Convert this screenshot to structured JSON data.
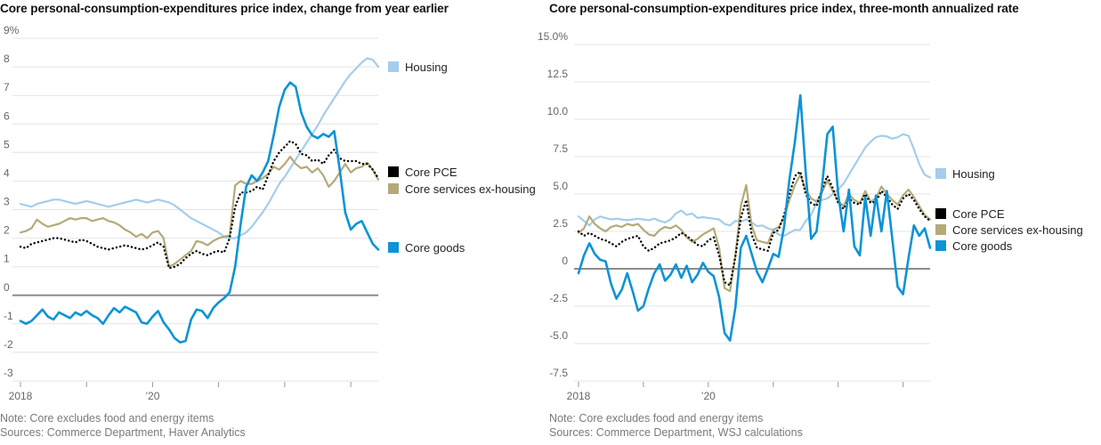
{
  "style": {
    "background": "#ffffff",
    "gridline_color": "#e4e4e4",
    "zero_line_color": "#8c8c8c",
    "tick_color": "#999999",
    "axis_text_color": "#666666",
    "title_color": "#121212",
    "note_color": "#7a7a7a",
    "legend_text_color": "#222222"
  },
  "chart_data": [
    {
      "type": "line",
      "title": "Core personal-consumption-expenditures price index, change from year earlier",
      "note": "Note: Core excludes food and energy items",
      "sources": "Sources: Commerce Department, Haver Analytics",
      "x_unit": "monthly, Jan 2018 through mid-2023",
      "ylim": [
        -3,
        9
      ],
      "yticks": [
        9,
        8,
        7,
        6,
        5,
        4,
        3,
        2,
        1,
        0,
        -1,
        -2,
        -3
      ],
      "ytick_labels": [
        "9%",
        "8",
        "7",
        "6",
        "5",
        "4",
        "3",
        "2",
        "1",
        "0",
        "-1",
        "-2",
        "-3"
      ],
      "xticks": [
        {
          "index": 0,
          "label": "2018"
        },
        {
          "index": 12,
          "label": ""
        },
        {
          "index": 24,
          "label": "’20"
        },
        {
          "index": 36,
          "label": ""
        },
        {
          "index": 48,
          "label": ""
        },
        {
          "index": 60,
          "label": ""
        }
      ],
      "grid": true,
      "legend_position": "right",
      "series": [
        {
          "name": "Housing",
          "color": "#a5cdeb",
          "style": "solid",
          "values": [
            3.2,
            3.15,
            3.1,
            3.2,
            3.25,
            3.3,
            3.35,
            3.35,
            3.3,
            3.25,
            3.2,
            3.25,
            3.3,
            3.25,
            3.2,
            3.15,
            3.1,
            3.15,
            3.2,
            3.25,
            3.3,
            3.35,
            3.3,
            3.25,
            3.3,
            3.35,
            3.3,
            3.25,
            3.15,
            3.0,
            2.85,
            2.7,
            2.6,
            2.5,
            2.4,
            2.3,
            2.2,
            2.05,
            2.0,
            2.0,
            2.1,
            2.2,
            2.4,
            2.65,
            2.9,
            3.2,
            3.55,
            3.9,
            4.15,
            4.45,
            4.75,
            5.05,
            5.35,
            5.65,
            5.95,
            6.3,
            6.6,
            6.9,
            7.2,
            7.5,
            7.75,
            7.95,
            8.15,
            8.3,
            8.25,
            8.0
          ]
        },
        {
          "name": "Core PCE",
          "color": "#000000",
          "style": "dotted",
          "values": [
            1.7,
            1.65,
            1.8,
            1.85,
            1.9,
            1.95,
            2.0,
            2.0,
            1.95,
            1.9,
            1.85,
            1.95,
            1.9,
            1.8,
            1.7,
            1.65,
            1.6,
            1.65,
            1.7,
            1.75,
            1.7,
            1.65,
            1.6,
            1.65,
            1.75,
            1.85,
            1.7,
            0.95,
            1.0,
            1.1,
            1.3,
            1.45,
            1.55,
            1.45,
            1.4,
            1.5,
            1.55,
            1.5,
            2.0,
            3.1,
            3.6,
            3.6,
            3.65,
            3.8,
            3.7,
            4.2,
            4.7,
            5.0,
            5.2,
            5.4,
            5.3,
            4.95,
            4.9,
            4.7,
            4.75,
            4.6,
            4.9,
            5.1,
            4.8,
            4.7,
            4.7,
            4.7,
            4.6,
            4.6,
            4.4,
            4.1
          ]
        },
        {
          "name": "Core services ex-housing",
          "color": "#b4aa79",
          "style": "solid",
          "values": [
            2.2,
            2.25,
            2.35,
            2.65,
            2.5,
            2.4,
            2.45,
            2.5,
            2.6,
            2.7,
            2.65,
            2.7,
            2.7,
            2.6,
            2.65,
            2.7,
            2.6,
            2.55,
            2.45,
            2.3,
            2.2,
            2.05,
            2.15,
            2.0,
            2.2,
            2.25,
            2.0,
            1.0,
            1.1,
            1.25,
            1.4,
            1.55,
            1.9,
            1.85,
            1.75,
            1.9,
            2.0,
            2.05,
            2.1,
            3.85,
            4.0,
            3.9,
            3.9,
            4.0,
            4.1,
            4.25,
            4.5,
            4.4,
            4.6,
            4.85,
            4.6,
            4.45,
            4.5,
            4.3,
            4.45,
            4.2,
            3.8,
            4.0,
            4.3,
            4.6,
            4.3,
            4.45,
            4.5,
            4.65,
            4.4,
            4.05
          ]
        },
        {
          "name": "Core goods",
          "color": "#0d93d6",
          "style": "solid",
          "values": [
            -0.9,
            -1.0,
            -0.9,
            -0.7,
            -0.5,
            -0.75,
            -0.85,
            -0.6,
            -0.7,
            -0.8,
            -0.6,
            -0.7,
            -0.55,
            -0.7,
            -0.8,
            -1.0,
            -0.7,
            -0.45,
            -0.6,
            -0.4,
            -0.5,
            -0.6,
            -0.95,
            -1.0,
            -0.75,
            -0.55,
            -0.95,
            -1.2,
            -1.5,
            -1.65,
            -1.6,
            -0.85,
            -0.5,
            -0.55,
            -0.8,
            -0.45,
            -0.25,
            -0.1,
            0.1,
            1.0,
            2.5,
            3.8,
            4.2,
            4.0,
            4.3,
            4.7,
            5.6,
            6.6,
            7.2,
            7.45,
            7.3,
            6.4,
            5.9,
            5.6,
            5.5,
            5.65,
            5.55,
            5.75,
            4.4,
            2.9,
            2.3,
            2.5,
            2.6,
            2.2,
            1.8,
            1.6
          ]
        }
      ]
    },
    {
      "type": "line",
      "title": "Core personal-consumption-expenditures price index, three-month annualized rate",
      "note": "Note: Core excludes food and energy items",
      "sources": "Sources: Commerce Department, WSJ calculations",
      "x_unit": "monthly, Jan 2018 through mid-2023",
      "ylim": [
        -7.5,
        15
      ],
      "yticks": [
        15,
        12.5,
        10,
        7.5,
        5,
        2.5,
        0,
        -2.5,
        -5,
        -7.5
      ],
      "ytick_labels": [
        "15.0%",
        "12.5",
        "10.0",
        "7.5",
        "5.0",
        "2.5",
        "0",
        "-2.5",
        "-5.0",
        "-7.5"
      ],
      "xticks": [
        {
          "index": 0,
          "label": "2018"
        },
        {
          "index": 12,
          "label": ""
        },
        {
          "index": 24,
          "label": "’20"
        },
        {
          "index": 36,
          "label": ""
        },
        {
          "index": 48,
          "label": ""
        },
        {
          "index": 60,
          "label": ""
        }
      ],
      "grid": true,
      "legend_position": "right",
      "series": [
        {
          "name": "Housing",
          "color": "#a5cdeb",
          "style": "solid",
          "values": [
            3.5,
            3.2,
            2.9,
            3.3,
            3.5,
            3.4,
            3.3,
            3.35,
            3.3,
            3.25,
            3.3,
            3.35,
            3.3,
            3.25,
            3.35,
            3.2,
            3.1,
            3.3,
            3.7,
            3.9,
            3.6,
            3.7,
            3.4,
            3.45,
            3.4,
            3.35,
            3.3,
            3.0,
            2.9,
            3.2,
            3.15,
            3.3,
            3.1,
            2.85,
            2.9,
            2.7,
            2.6,
            2.3,
            2.2,
            2.4,
            2.6,
            2.6,
            3.2,
            3.6,
            4.4,
            4.6,
            4.7,
            5.0,
            5.3,
            5.7,
            6.3,
            6.9,
            7.5,
            8.1,
            8.5,
            8.8,
            8.9,
            8.85,
            8.7,
            8.8,
            9.0,
            8.9,
            8.0,
            7.0,
            6.3,
            6.1
          ]
        },
        {
          "name": "Core PCE",
          "color": "#000000",
          "style": "dotted",
          "values": [
            2.5,
            2.2,
            2.4,
            2.2,
            2.0,
            1.9,
            1.7,
            1.5,
            1.8,
            2.0,
            2.1,
            2.2,
            1.5,
            1.2,
            1.4,
            1.7,
            1.8,
            1.9,
            2.1,
            2.4,
            2.2,
            1.9,
            1.6,
            1.5,
            1.9,
            2.1,
            0.9,
            -0.9,
            -1.1,
            0.8,
            3.4,
            4.6,
            2.3,
            1.4,
            1.3,
            1.2,
            2.4,
            2.6,
            3.6,
            5.0,
            6.2,
            6.5,
            5.0,
            4.4,
            4.2,
            5.3,
            6.2,
            5.4,
            4.4,
            4.0,
            4.7,
            4.4,
            4.3,
            5.0,
            4.4,
            4.5,
            5.2,
            4.8,
            4.3,
            4.0,
            4.7,
            5.0,
            4.6,
            4.0,
            3.5,
            3.2
          ]
        },
        {
          "name": "Core services ex-housing",
          "color": "#b4aa79",
          "style": "solid",
          "values": [
            2.4,
            2.7,
            3.5,
            3.0,
            2.7,
            2.5,
            2.8,
            2.9,
            2.8,
            3.0,
            2.9,
            3.0,
            2.6,
            2.3,
            2.2,
            2.6,
            2.8,
            2.7,
            2.9,
            2.6,
            2.1,
            1.8,
            2.0,
            2.3,
            2.5,
            2.7,
            1.4,
            -1.3,
            -1.5,
            0.9,
            4.2,
            5.6,
            2.9,
            1.9,
            1.8,
            1.7,
            2.6,
            2.8,
            3.4,
            4.6,
            5.6,
            6.3,
            5.3,
            4.7,
            4.5,
            5.1,
            5.9,
            5.2,
            4.5,
            4.2,
            5.0,
            4.6,
            4.4,
            5.2,
            4.5,
            4.7,
            5.5,
            5.0,
            4.6,
            4.3,
            4.9,
            5.3,
            4.8,
            4.2,
            3.6,
            3.3
          ]
        },
        {
          "name": "Core goods",
          "color": "#0d93d6",
          "style": "solid",
          "values": [
            -0.3,
            0.9,
            1.7,
            1.0,
            0.6,
            0.5,
            -1.0,
            -2.0,
            -1.4,
            -0.3,
            -1.5,
            -2.8,
            -2.5,
            -1.3,
            -0.3,
            0.3,
            -0.8,
            -0.4,
            0.3,
            -0.6,
            0.2,
            -0.9,
            -0.4,
            0.4,
            -0.2,
            -0.5,
            -1.9,
            -4.3,
            -4.8,
            -2.6,
            1.4,
            2.2,
            1.0,
            -0.2,
            -0.9,
            0.0,
            1.0,
            0.8,
            2.8,
            6.0,
            8.5,
            11.6,
            6.5,
            2.0,
            2.5,
            5.5,
            9.0,
            9.5,
            5.0,
            2.5,
            5.3,
            1.5,
            0.9,
            4.8,
            2.2,
            4.9,
            2.5,
            5.2,
            2.0,
            -1.2,
            -1.7,
            0.7,
            2.9,
            2.2,
            2.7,
            1.4
          ]
        }
      ]
    }
  ]
}
